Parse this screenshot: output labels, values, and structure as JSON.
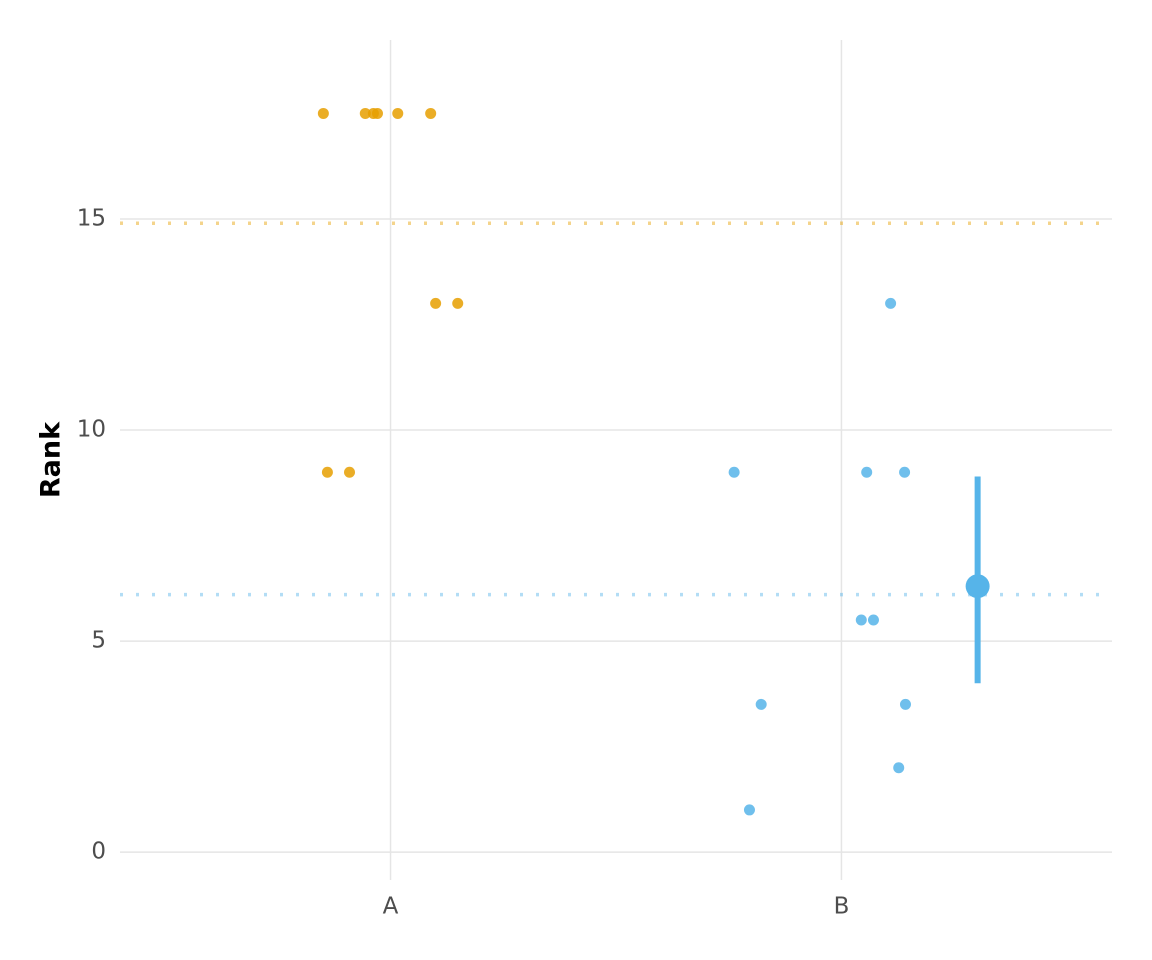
{
  "chart_data": {
    "type": "scatter",
    "ylabel": "Rank",
    "xlim": [
      0.4,
      2.6
    ],
    "xticks": [
      {
        "value": 1,
        "label": "A"
      },
      {
        "value": 2,
        "label": "B"
      }
    ],
    "ylim": [
      -0.66,
      19.24
    ],
    "yticks": [
      0,
      5,
      10,
      15
    ],
    "grid": true,
    "series": [
      {
        "color": "#E69F00",
        "x": [
          0.851,
          0.944,
          0.962,
          0.971,
          1.016,
          1.089,
          1.1,
          1.149,
          0.86,
          0.909
        ],
        "values": [
          17.5,
          17.5,
          17.5,
          17.5,
          17.5,
          17.5,
          13,
          13,
          9,
          9
        ],
        "mean": 14.9
      },
      {
        "color": "#56B4E9",
        "x": [
          2.109,
          1.762,
          2.056,
          2.14,
          2.044,
          2.071,
          1.822,
          2.142,
          2.127,
          1.796
        ],
        "values": [
          13,
          9,
          9,
          9,
          5.5,
          5.5,
          3.5,
          3.5,
          2,
          1
        ],
        "mean": 6.1,
        "summary": {
          "x": 2.302,
          "y": 6.3,
          "low": 4.0,
          "high": 8.9
        }
      }
    ]
  }
}
